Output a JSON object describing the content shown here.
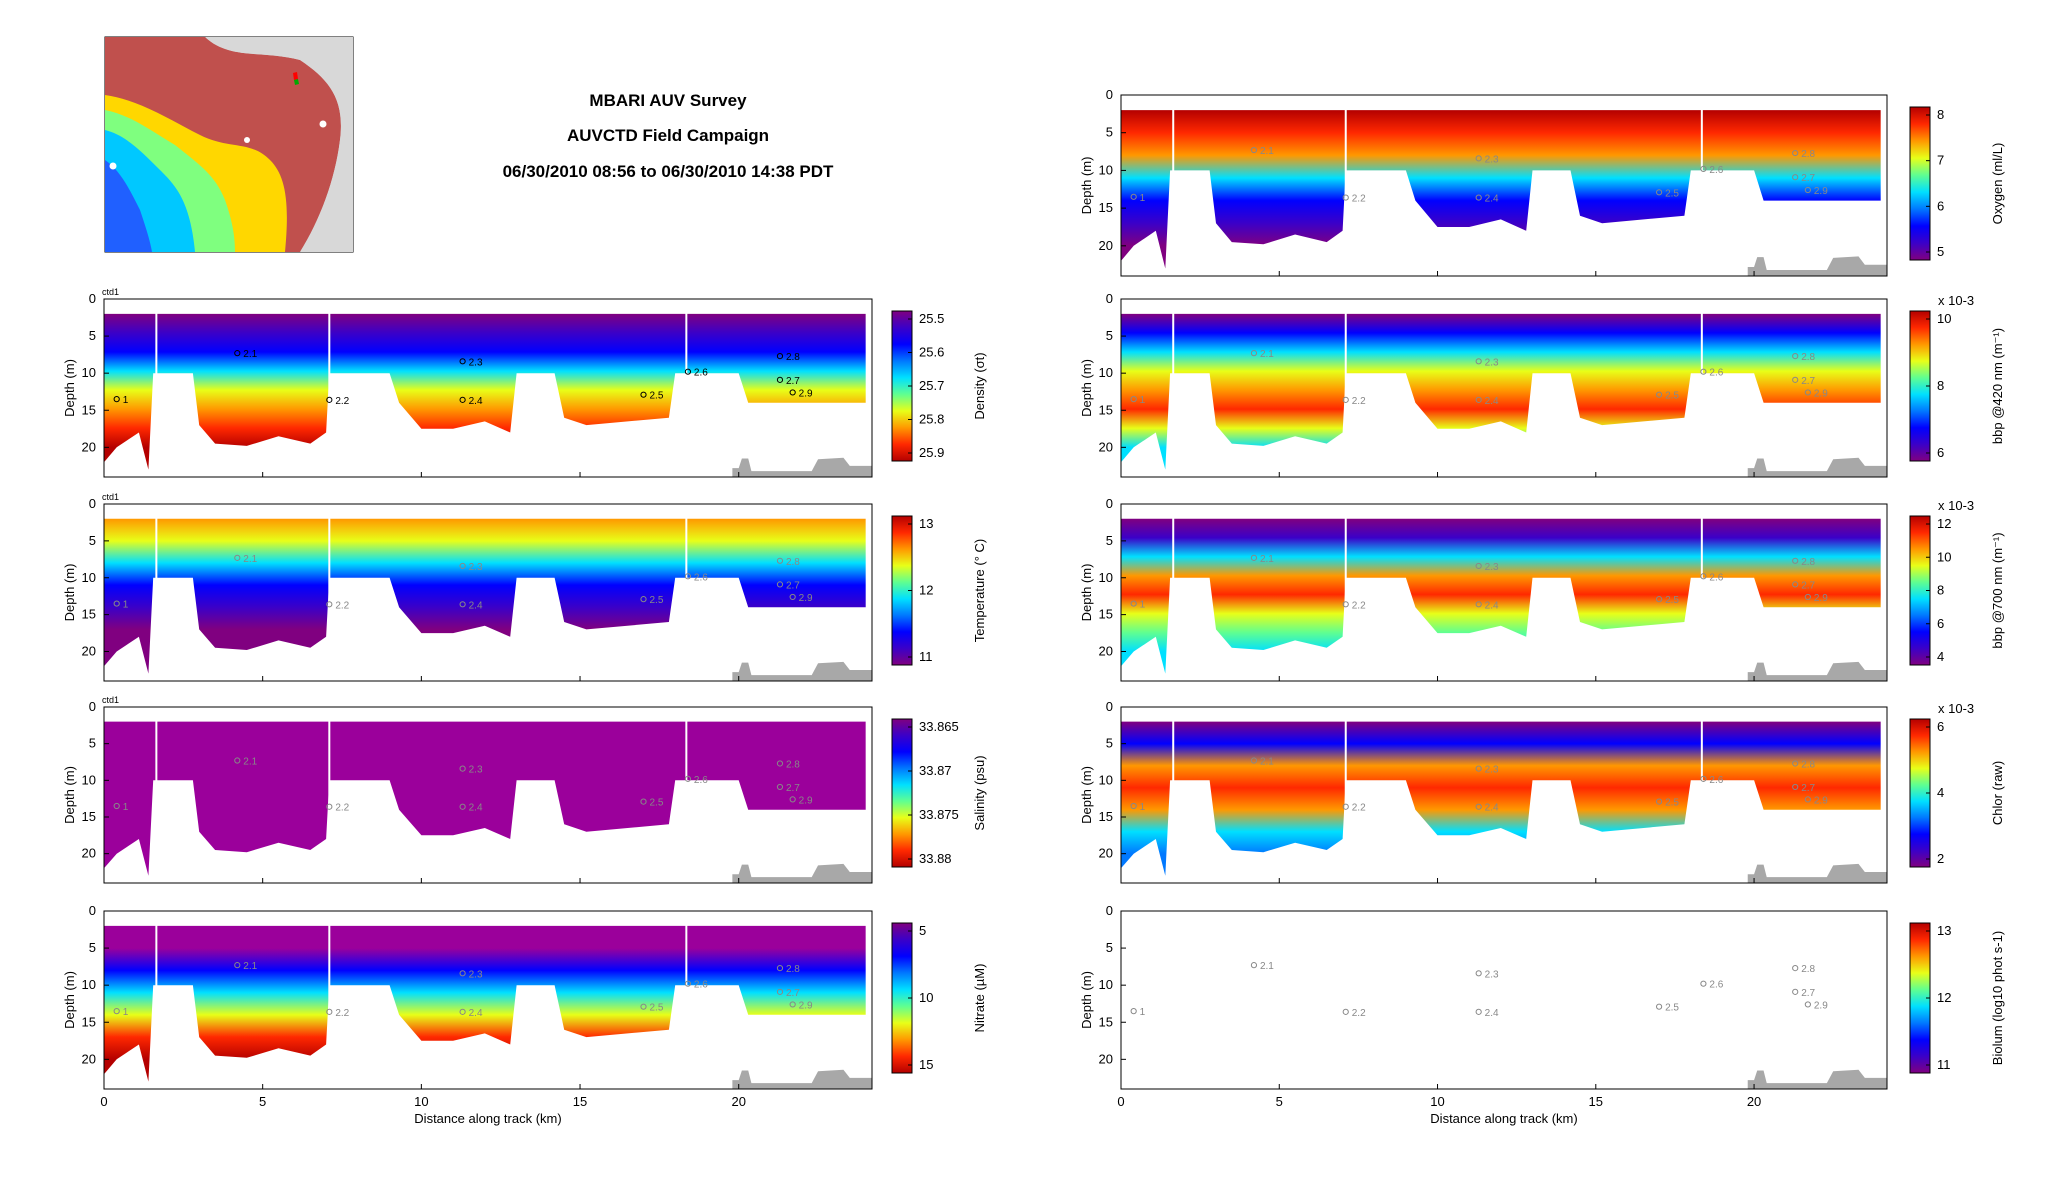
{
  "header": {
    "line1": "MBARI AUV Survey",
    "line2": "AUVCTD Field Campaign",
    "line3": "06/30/2010 08:56 to 06/30/2010 14:38 PDT"
  },
  "map": {
    "label": "bathymetry-map"
  },
  "chart_data": {
    "type": "heatmap",
    "xlabel": "Distance along track (km)",
    "xlim": [
      0,
      24.2
    ],
    "xticks": [
      0,
      5,
      10,
      15,
      20
    ],
    "ylabel": "Depth (m)",
    "ylim": [
      24,
      0
    ],
    "yticks": [
      0,
      5,
      10,
      15,
      20
    ],
    "seafloor_profile": [
      [
        0,
        22
      ],
      [
        0.4,
        20
      ],
      [
        1.1,
        18
      ],
      [
        1.4,
        23
      ],
      [
        1.55,
        10
      ],
      [
        2.8,
        10
      ],
      [
        3.0,
        17
      ],
      [
        3.5,
        19.5
      ],
      [
        4.5,
        19.8
      ],
      [
        5.5,
        18.5
      ],
      [
        6.5,
        19.5
      ],
      [
        7.0,
        18
      ],
      [
        7.1,
        10
      ],
      [
        9.0,
        10
      ],
      [
        9.3,
        14
      ],
      [
        10.0,
        17.5
      ],
      [
        11.0,
        17.5
      ],
      [
        12.0,
        16.5
      ],
      [
        12.8,
        18
      ],
      [
        13.0,
        10
      ],
      [
        14.2,
        10
      ],
      [
        14.5,
        16
      ],
      [
        15.2,
        17
      ],
      [
        17.8,
        16
      ],
      [
        18.0,
        10
      ],
      [
        20.0,
        10
      ],
      [
        20.3,
        14
      ],
      [
        24.0,
        14
      ]
    ],
    "stations": [
      {
        "label": "1",
        "x": 0.4,
        "y": 13.5
      },
      {
        "label": "2.1",
        "x": 4.2,
        "y": 7.3
      },
      {
        "label": "2.2",
        "x": 7.1,
        "y": 13.6
      },
      {
        "label": "2.3",
        "x": 11.3,
        "y": 8.4
      },
      {
        "label": "2.4",
        "x": 11.3,
        "y": 13.6
      },
      {
        "label": "2.5",
        "x": 17.0,
        "y": 12.9
      },
      {
        "label": "2.6",
        "x": 18.4,
        "y": 9.8
      },
      {
        "label": "2.7",
        "x": 21.3,
        "y": 10.9
      },
      {
        "label": "2.8",
        "x": 21.3,
        "y": 7.7
      },
      {
        "label": "2.9",
        "x": 21.7,
        "y": 12.6
      }
    ],
    "panels": [
      {
        "id": "density",
        "column": "left",
        "row": 0,
        "tag": "ctd1",
        "colorbar_label": "Density (σt)",
        "colorbar_ticks": [
          "25.5",
          "25.6",
          "25.7",
          "25.8",
          "25.9"
        ],
        "clim": [
          25.45,
          25.95
        ],
        "colormap": "jet_reversed"
      },
      {
        "id": "temperature",
        "column": "left",
        "row": 1,
        "tag": "ctd1",
        "colorbar_label": "Temperature (° C)",
        "colorbar_ticks": [
          "13",
          "12",
          "11"
        ],
        "clim": [
          10.8,
          13.5
        ],
        "colormap": "jet"
      },
      {
        "id": "salinity",
        "column": "left",
        "row": 2,
        "tag": "ctd1",
        "colorbar_label": "Salinity (psu)",
        "colorbar_ticks": [
          "33.865",
          "33.87",
          "33.875",
          "33.88"
        ],
        "clim": [
          33.863,
          33.882
        ],
        "colormap": "jet_reversed"
      },
      {
        "id": "nitrate",
        "column": "left",
        "row": 3,
        "tag": "",
        "colorbar_label": "Nitrate (µM)",
        "colorbar_ticks": [
          "5",
          "10",
          "15"
        ],
        "clim": [
          3,
          15
        ],
        "colormap": "jet_reversed"
      },
      {
        "id": "oxygen",
        "column": "right",
        "row": 0,
        "tag": "",
        "colorbar_label": "Oxygen (ml/L)",
        "colorbar_ticks": [
          "8",
          "7",
          "6",
          "5"
        ],
        "clim": [
          4.7,
          8.2
        ],
        "colormap": "jet"
      },
      {
        "id": "bbp420",
        "column": "right",
        "row": 1,
        "tag": "",
        "colorbar_label": "bbp @420 nm (m⁻¹)",
        "colorbar_exponent": "x 10-3",
        "colorbar_ticks": [
          "10",
          "8",
          "6"
        ],
        "clim": [
          4.0,
          10.5
        ],
        "colormap": "jet"
      },
      {
        "id": "bbp700",
        "column": "right",
        "row": 2,
        "tag": "",
        "colorbar_label": "bbp @700 nm (m⁻¹)",
        "colorbar_exponent": "x 10-3",
        "colorbar_ticks": [
          "12",
          "10",
          "8",
          "6",
          "4"
        ],
        "clim": [
          3.5,
          12
        ],
        "colormap": "jet"
      },
      {
        "id": "chlor",
        "column": "right",
        "row": 3,
        "tag": "",
        "colorbar_label": "Chlor (raw)",
        "colorbar_exponent": "x 10-3",
        "colorbar_ticks": [
          "6",
          "4",
          "2"
        ],
        "clim": [
          0,
          6.5
        ],
        "colormap": "jet"
      },
      {
        "id": "biolum",
        "column": "right",
        "row": 4,
        "tag": "",
        "colorbar_label": "Biolum (log10 phot s-1)",
        "colorbar_ticks": [
          "13",
          "12",
          "11"
        ],
        "clim": [
          10.9,
          13.6
        ],
        "colormap": "jet"
      }
    ]
  },
  "colors": {
    "jet": [
      "#800080",
      "#3b00c8",
      "#0000ff",
      "#0078ff",
      "#00e0ff",
      "#60ff90",
      "#e8ff18",
      "#ff9800",
      "#ff2800",
      "#b40000"
    ],
    "seafloor": "#a8a8a8",
    "frame": "#000000"
  }
}
